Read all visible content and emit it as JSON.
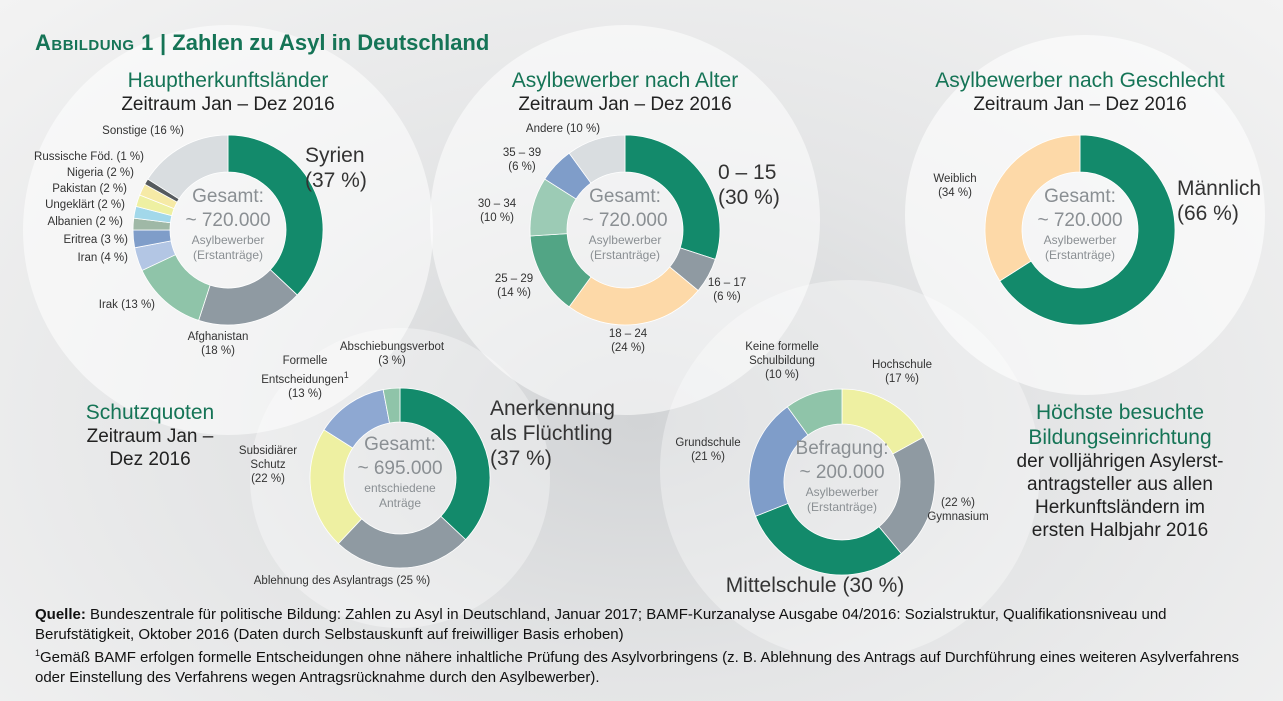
{
  "title_label": "Abbildung 1",
  "title": "Zahlen zu Asyl in Deutschland",
  "chart_data": [
    {
      "type": "donut",
      "title": "Hauptherkunftsländer",
      "subtitle": "Zeitraum Jan – Dez 2016",
      "center": [
        "Gesamt:",
        "~ 720.000",
        "Asylbewerber",
        "(Erstanträge)"
      ],
      "categories": [
        "Syrien",
        "Afghanistan",
        "Irak",
        "Iran",
        "Eritrea",
        "Albanien",
        "Ungeklärt",
        "Pakistan",
        "Nigeria",
        "Russische Föd.",
        "Sonstige"
      ],
      "values": [
        37,
        18,
        13,
        4,
        3,
        2,
        2,
        2,
        2,
        1,
        16
      ],
      "value_labels": [
        "(37 %)",
        "(18 %)",
        "(13 %)",
        "(4 %)",
        "(3 %)",
        "(2 %)",
        "(2 %)",
        "(2 %)",
        "(2 %)",
        "(1 %)",
        "(16 %)"
      ],
      "colors": [
        "#138a6b",
        "#8f9aa2",
        "#8fc4a9",
        "#b3c6e4",
        "#7f9dc9",
        "#9fb8a6",
        "#a2d8ea",
        "#eef0a2",
        "#f6eaa6",
        "#555a5e",
        "#d9dde0"
      ]
    },
    {
      "type": "donut",
      "title": "Asylbewerber nach Alter",
      "subtitle": "Zeitraum Jan – Dez 2016",
      "center": [
        "Gesamt:",
        "~ 720.000",
        "Asylbewerber",
        "(Erstanträge)"
      ],
      "categories": [
        "0 – 15",
        "16 – 17",
        "18 – 24",
        "25 – 29",
        "30 – 34",
        "35 – 39",
        "Andere"
      ],
      "values": [
        30,
        6,
        24,
        14,
        10,
        6,
        10
      ],
      "value_labels": [
        "(30 %)",
        "(6 %)",
        "(24 %)",
        "(14 %)",
        "(10 %)",
        "(6 %)",
        "(10 %)"
      ],
      "colors": [
        "#138a6b",
        "#8f9aa2",
        "#fdd9a8",
        "#52a585",
        "#9ccbb5",
        "#7f9dc9",
        "#d9dde0"
      ]
    },
    {
      "type": "donut",
      "title": "Asylbewerber nach Geschlecht",
      "subtitle": "Zeitraum Jan – Dez 2016",
      "center": [
        "Gesamt:",
        "~ 720.000",
        "Asylbewerber",
        "(Erstanträge)"
      ],
      "categories": [
        "Männlich",
        "Weiblich"
      ],
      "values": [
        66,
        34
      ],
      "value_labels": [
        "(66 %)",
        "(34 %)"
      ],
      "colors": [
        "#138a6b",
        "#fdd9a8"
      ]
    },
    {
      "type": "donut",
      "title": "Schutzquoten",
      "subtitle": "Zeitraum Jan – Dez 2016",
      "center": [
        "Gesamt:",
        "~ 695.000",
        "entschiedene",
        "Anträge"
      ],
      "categories": [
        "Anerkennung als Flüchtling",
        "Ablehnung des Asylantrags",
        "Subsidiärer Schutz",
        "Formelle Entscheidungen",
        "Abschiebungsverbot"
      ],
      "values": [
        37,
        25,
        22,
        13,
        3
      ],
      "value_labels": [
        "(37 %)",
        "(25 %)",
        "(22 %)",
        "(13 %)",
        "(3 %)"
      ],
      "footnote_mark": "1",
      "colors": [
        "#138a6b",
        "#8f9aa2",
        "#eef0a2",
        "#8ea8d2",
        "#8fc4a9"
      ]
    },
    {
      "type": "donut",
      "title": "Höchste besuchte Bildungseinrichtung",
      "subtitle": [
        "der volljährigen Asylerst-",
        "antragsteller aus allen",
        "Herkunftsländern im",
        "ersten Halbjahr 2016"
      ],
      "center": [
        "Befragung:",
        "~ 200.000",
        "Asylbewerber",
        "(Erstanträge)"
      ],
      "categories": [
        "Hochschule",
        "Gymnasium",
        "Mittelschule",
        "Grundschule",
        "Keine formelle Schulbildung"
      ],
      "values": [
        17,
        22,
        30,
        21,
        10
      ],
      "value_labels": [
        "(17 %)",
        "(22 %)",
        "(30 %)",
        "(21 %)",
        "(10 %)"
      ],
      "colors": [
        "#eef0a2",
        "#8f9aa2",
        "#138a6b",
        "#7f9dc9",
        "#8fc4a9"
      ]
    }
  ],
  "source_label": "Quelle:",
  "source": "Bundeszentrale für politische Bildung: Zahlen zu Asyl in Deutschland, Januar 2017; BAMF-Kurzanalyse Ausgabe 04/2016: Sozialstruktur, Qualifikationsniveau und Berufstätigkeit, Oktober 2016 (Daten durch Selbstauskunft auf freiwilliger Basis erhoben)",
  "footnote_mark": "1",
  "footnote": "Gemäß BAMF erfolgen formelle Entscheidungen ohne nähere inhaltliche Prüfung des Asylvorbringens (z. B. Ablehnung des Antrags auf Durchführung eines weiteren Asylverfahrens oder Einstellung des Verfahrens wegen Antragsrücknahme durch den Asylbewerber)."
}
